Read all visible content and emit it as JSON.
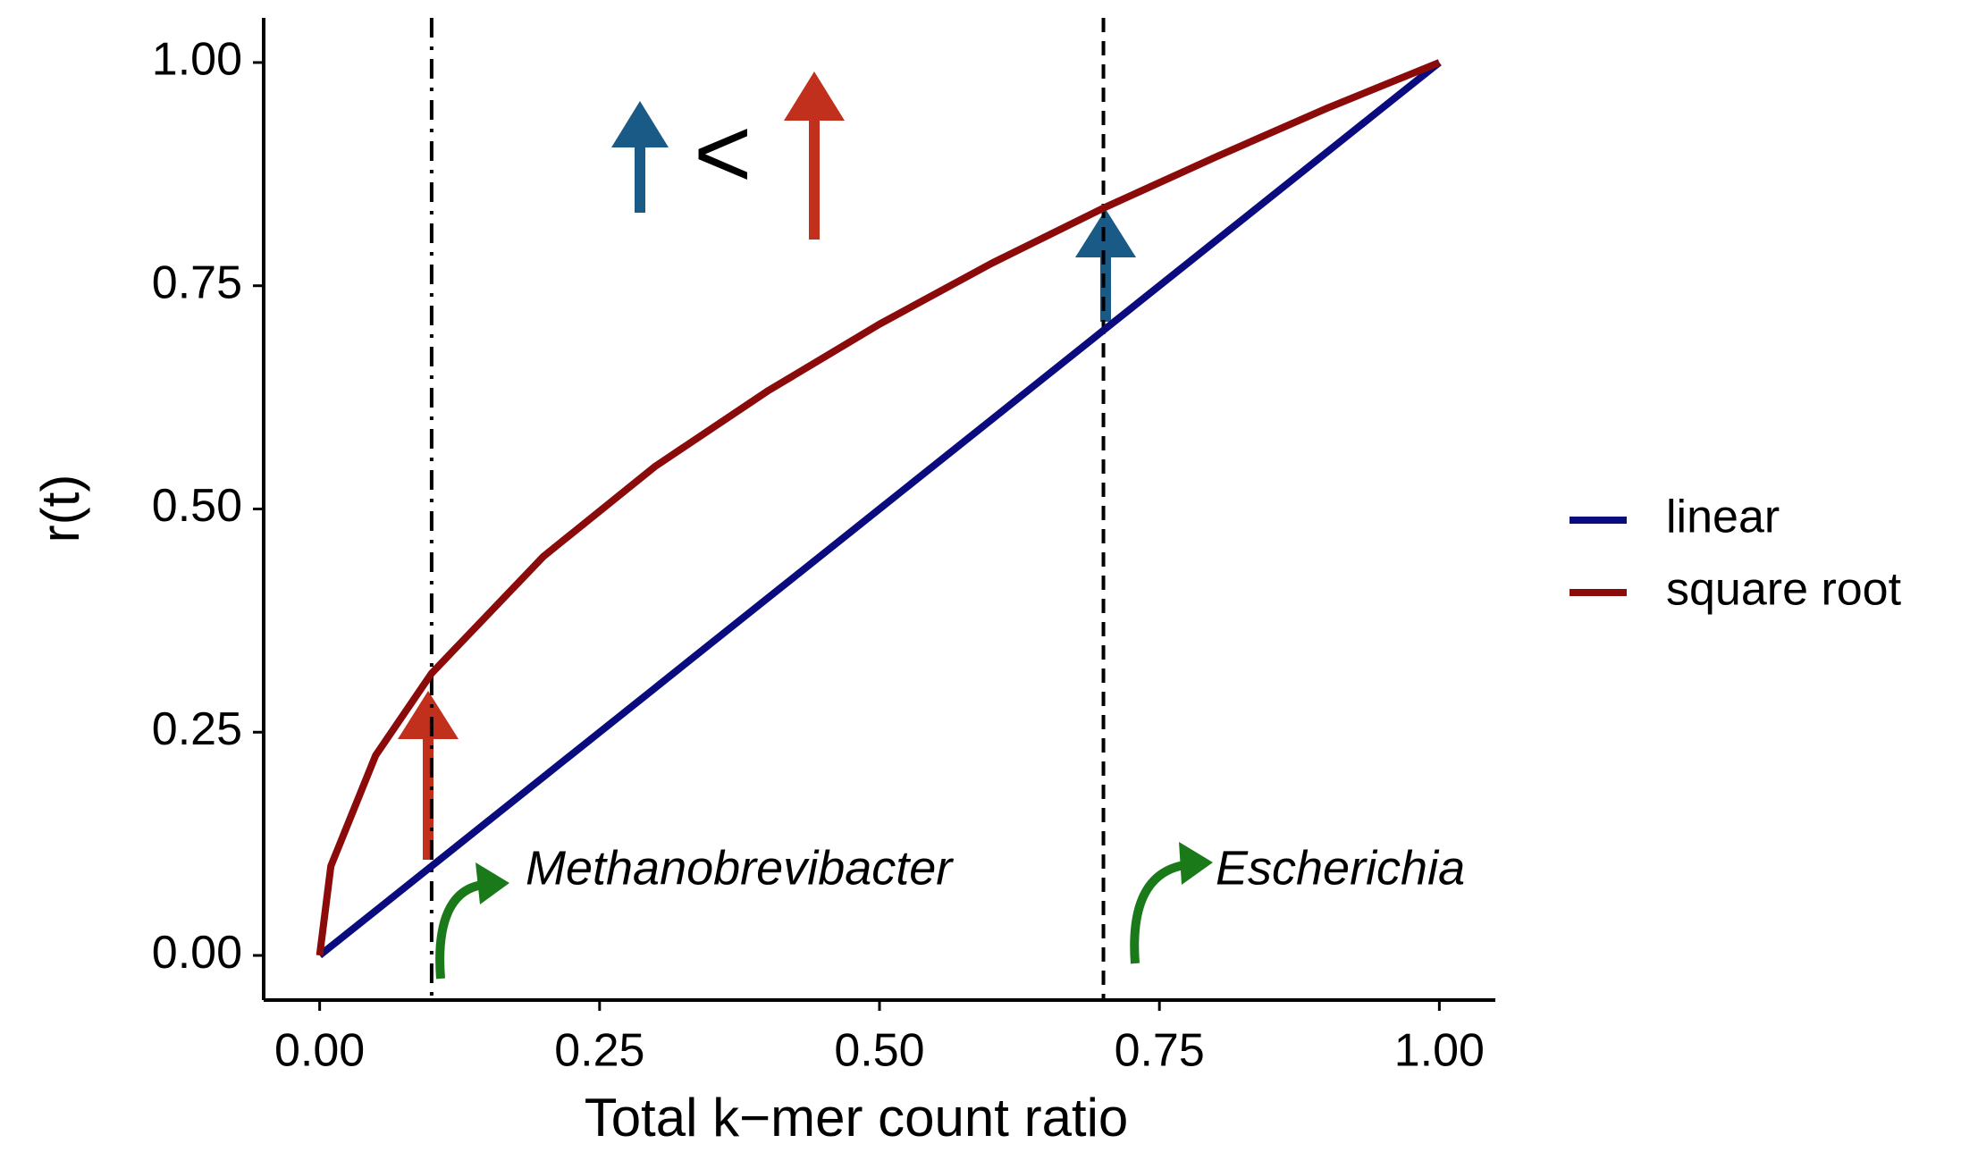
{
  "chart_data": {
    "type": "line",
    "x_label": "Total k−mer count ratio",
    "y_label": "r(t)",
    "x": [
      0,
      0.01,
      0.05,
      0.1,
      0.2,
      0.3,
      0.4,
      0.5,
      0.6,
      0.7,
      0.8,
      0.9,
      1
    ],
    "series": [
      {
        "name": "linear",
        "color": "#0b0b80",
        "values": [
          0,
          0.01,
          0.05,
          0.1,
          0.2,
          0.3,
          0.4,
          0.5,
          0.6,
          0.7,
          0.8,
          0.9,
          1
        ]
      },
      {
        "name": "square root",
        "color": "#8b0a0a",
        "values": [
          0,
          0.1,
          0.224,
          0.316,
          0.447,
          0.548,
          0.632,
          0.707,
          0.775,
          0.837,
          0.894,
          0.949,
          1
        ]
      }
    ],
    "xlim": [
      -0.05,
      1.05
    ],
    "ylim": [
      -0.05,
      1.05
    ],
    "xticks": [
      {
        "value": 0,
        "label": "0.00"
      },
      {
        "value": 0.25,
        "label": "0.25"
      },
      {
        "value": 0.5,
        "label": "0.50"
      },
      {
        "value": 0.75,
        "label": "0.75"
      },
      {
        "value": 1,
        "label": "1.00"
      }
    ],
    "yticks": [
      {
        "value": 0,
        "label": "0.00"
      },
      {
        "value": 0.25,
        "label": "0.25"
      },
      {
        "value": 0.5,
        "label": "0.50"
      },
      {
        "value": 0.75,
        "label": "0.75"
      },
      {
        "value": 1,
        "label": "1.00"
      }
    ],
    "vlines": [
      0.1,
      0.7
    ],
    "annotations": [
      "<",
      "Methanobrevibacter",
      "Escherichia"
    ],
    "grid": false,
    "legend": "right"
  }
}
